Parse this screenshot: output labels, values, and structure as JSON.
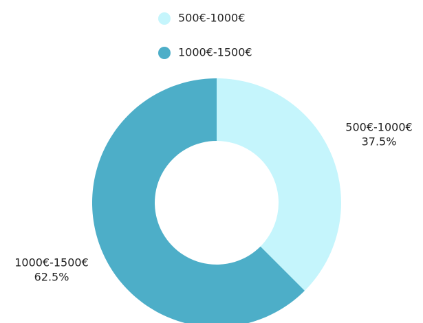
{
  "chart_data": {
    "type": "donut",
    "categories": [
      "500€-1000€",
      "1000€-1500€"
    ],
    "values": [
      37.5,
      62.5
    ],
    "value_labels": [
      "37.5%",
      "62.5%"
    ],
    "colors": [
      "#c5f5fc",
      "#4daec8"
    ],
    "legend": "top"
  }
}
